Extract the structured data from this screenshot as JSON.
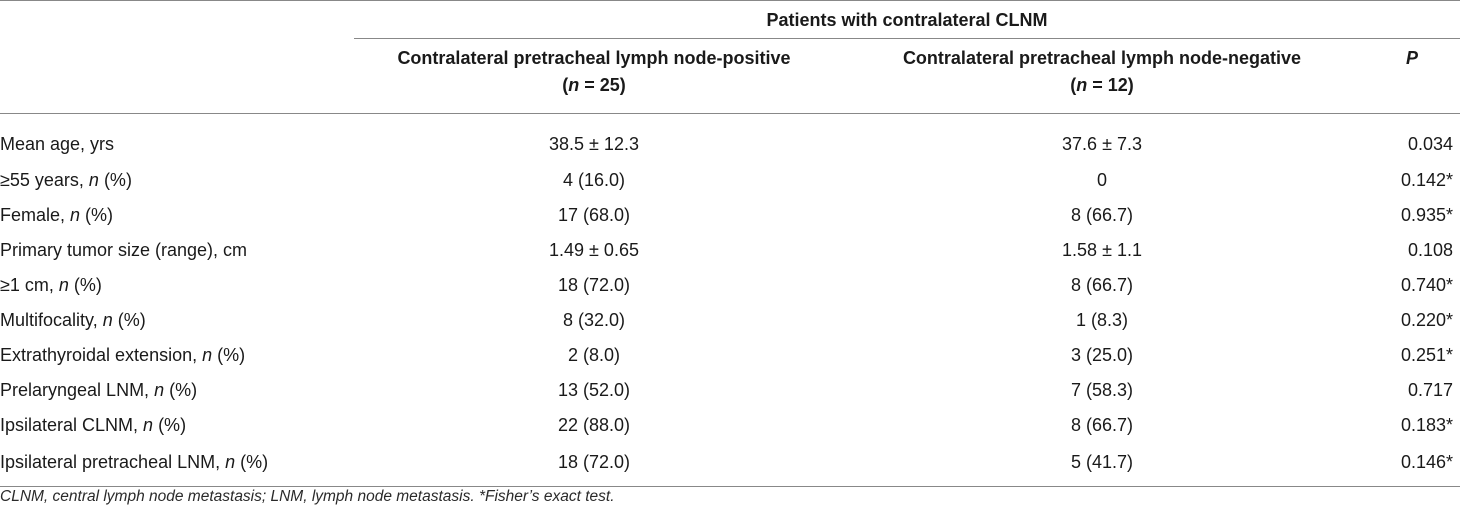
{
  "table": {
    "group_header": "Patients with contralateral CLNM",
    "columns": {
      "positive": {
        "line1": "Contralateral pretracheal lymph node-positive",
        "n_label": "n",
        "n_rest": " = 25"
      },
      "negative": {
        "line1": "Contralateral pretracheal lymph node-negative",
        "n_label": "n",
        "n_rest": " = 12"
      },
      "p": "P"
    },
    "rows": [
      {
        "label": "Mean age, yrs",
        "n_italic": "",
        "suffix": "",
        "positive": "38.5 ± 12.3",
        "negative": "37.6 ± 7.3",
        "p": "0.034"
      },
      {
        "label": "≥55 years, ",
        "n_italic": "n",
        "suffix": " (%)",
        "positive": "4 (16.0)",
        "negative": "0",
        "p": "0.142*"
      },
      {
        "label": "Female, ",
        "n_italic": "n",
        "suffix": " (%)",
        "positive": "17 (68.0)",
        "negative": "8 (66.7)",
        "p": "0.935*"
      },
      {
        "label": "Primary tumor size (range), cm",
        "n_italic": "",
        "suffix": "",
        "positive": "1.49 ± 0.65",
        "negative": "1.58 ± 1.1",
        "p": "0.108"
      },
      {
        "label": "≥1 cm, ",
        "n_italic": "n",
        "suffix": " (%)",
        "positive": "18 (72.0)",
        "negative": "8 (66.7)",
        "p": "0.740*"
      },
      {
        "label": "Multifocality, ",
        "n_italic": "n",
        "suffix": " (%)",
        "positive": "8 (32.0)",
        "negative": "1 (8.3)",
        "p": "0.220*"
      },
      {
        "label": "Extrathyroidal extension, ",
        "n_italic": "n",
        "suffix": " (%)",
        "positive": "2 (8.0)",
        "negative": "3 (25.0)",
        "p": "0.251*"
      },
      {
        "label": "Prelaryngeal LNM, ",
        "n_italic": "n",
        "suffix": " (%)",
        "positive": "13 (52.0)",
        "negative": "7 (58.3)",
        "p": "0.717"
      },
      {
        "label": "Ipsilateral CLNM, ",
        "n_italic": "n",
        "suffix": " (%)",
        "positive": "22 (88.0)",
        "negative": "8 (66.7)",
        "p": "0.183*"
      },
      {
        "label": "Ipsilateral pretracheal LNM, ",
        "n_italic": "n",
        "suffix": " (%)",
        "positive": "18 (72.0)",
        "negative": "5 (41.7)",
        "p": "0.146*"
      }
    ],
    "footnote": "CLNM, central lymph node metastasis; LNM, lymph node metastasis. *Fisher’s exact test."
  }
}
